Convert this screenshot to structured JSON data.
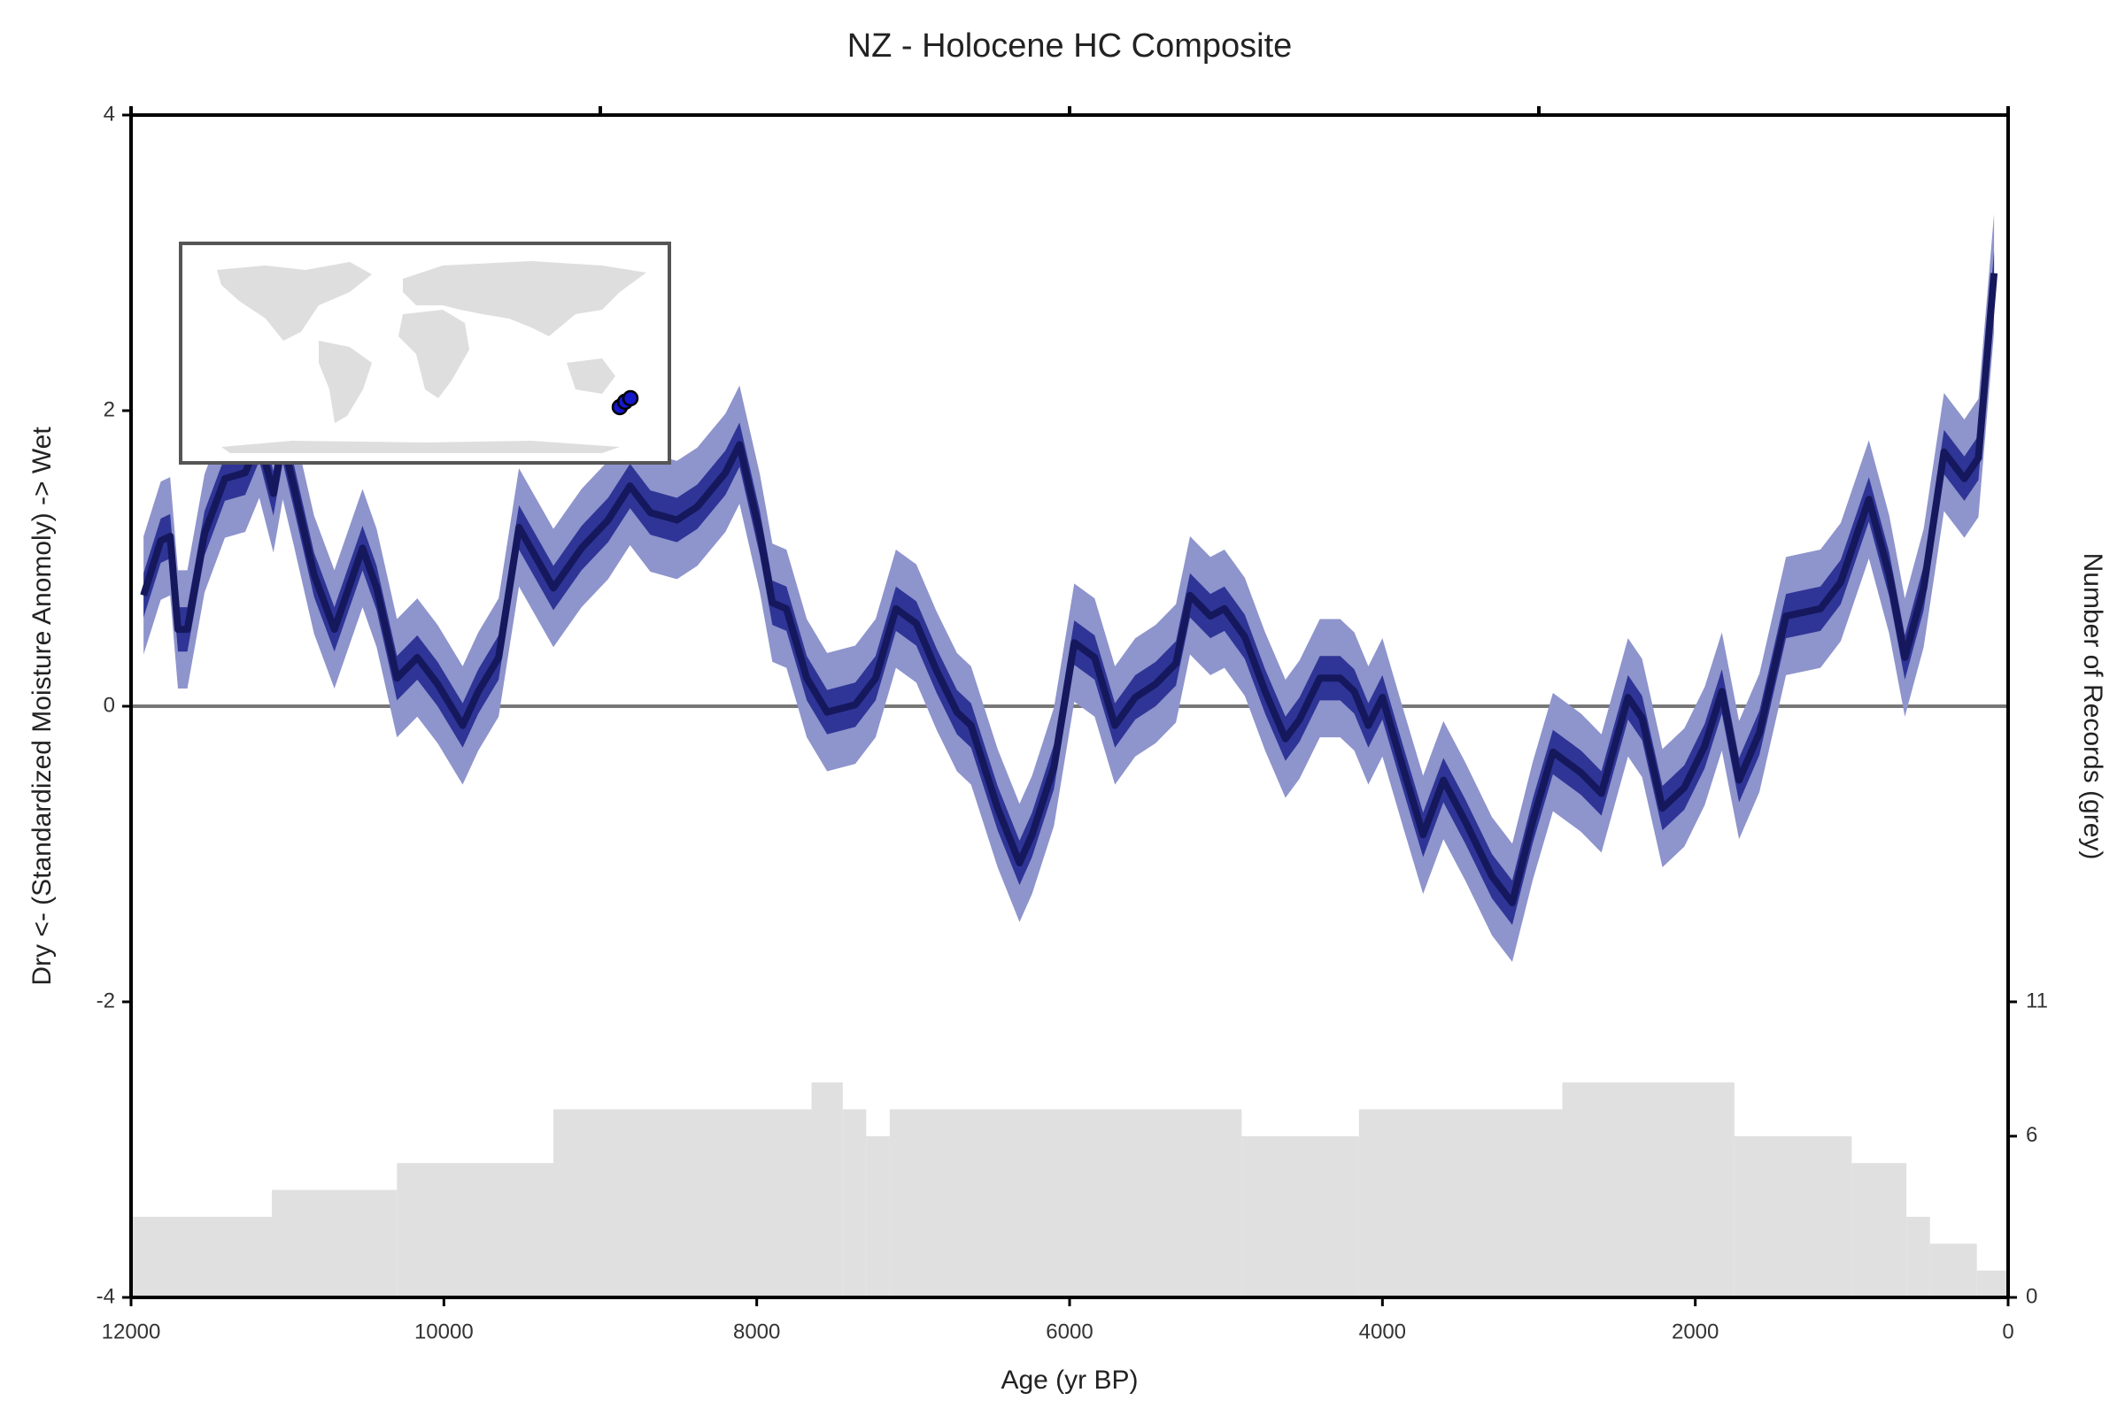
{
  "chart_data": {
    "type": "line",
    "title": "NZ - Holocene HC Composite",
    "xlabel": "Age (yr BP)",
    "ylabel": "Dry <- (Standardized Moisture Anomoly) -> Wet",
    "y2label": "Number of Records (grey)",
    "xlim": [
      12000,
      0
    ],
    "xticks": [
      12000,
      10000,
      8000,
      6000,
      4000,
      2000,
      0
    ],
    "top_ticks": [
      12000,
      9000,
      6000,
      3000,
      0
    ],
    "ylim": [
      -4,
      4
    ],
    "yticks": [
      -4,
      -2,
      0,
      2,
      4
    ],
    "y2lim": [
      0,
      44
    ],
    "y2ticks": [
      0,
      6,
      11
    ],
    "zero_line": 0,
    "x": [
      11920,
      11810,
      11750,
      11700,
      11640,
      11530,
      11400,
      11270,
      11180,
      11090,
      11030,
      10960,
      10830,
      10700,
      10520,
      10430,
      10300,
      10170,
      10040,
      9880,
      9780,
      9650,
      9520,
      9300,
      9120,
      8950,
      8810,
      8680,
      8510,
      8380,
      8200,
      8110,
      7980,
      7900,
      7810,
      7680,
      7550,
      7370,
      7240,
      7110,
      6980,
      6850,
      6720,
      6630,
      6460,
      6320,
      6240,
      6100,
      5970,
      5840,
      5710,
      5580,
      5450,
      5320,
      5230,
      5100,
      5010,
      4880,
      4750,
      4620,
      4530,
      4400,
      4270,
      4180,
      4090,
      4000,
      3870,
      3740,
      3610,
      3470,
      3300,
      3170,
      3040,
      2910,
      2730,
      2600,
      2430,
      2340,
      2210,
      2070,
      1940,
      1830,
      1720,
      1590,
      1420,
      1200,
      1070,
      890,
      760,
      660,
      540,
      410,
      280,
      190,
      90
    ],
    "series": [
      {
        "color": "#16185e",
        "values": [
          0.75,
          1.12,
          1.15,
          0.52,
          0.52,
          1.17,
          1.54,
          1.58,
          1.81,
          1.44,
          1.8,
          1.49,
          0.89,
          0.52,
          1.07,
          0.8,
          0.19,
          0.33,
          0.15,
          -0.13,
          0.1,
          0.33,
          1.21,
          0.8,
          1.07,
          1.26,
          1.49,
          1.31,
          1.26,
          1.35,
          1.58,
          1.77,
          1.17,
          0.7,
          0.66,
          0.19,
          -0.04,
          0.01,
          0.19,
          0.66,
          0.56,
          0.24,
          -0.04,
          -0.13,
          -0.69,
          -1.06,
          -0.87,
          -0.41,
          0.43,
          0.33,
          -0.13,
          0.06,
          0.15,
          0.29,
          0.75,
          0.61,
          0.66,
          0.47,
          0.1,
          -0.22,
          -0.09,
          0.19,
          0.19,
          0.1,
          -0.13,
          0.06,
          -0.41,
          -0.87,
          -0.5,
          -0.78,
          -1.15,
          -1.33,
          -0.78,
          -0.31,
          -0.45,
          -0.59,
          0.06,
          -0.08,
          -0.69,
          -0.55,
          -0.27,
          0.1,
          -0.5,
          -0.18,
          0.61,
          0.66,
          0.84,
          1.4,
          0.89,
          0.33,
          0.8,
          1.72,
          1.54,
          1.68,
          2.93
        ]
      }
    ],
    "bands": [
      {
        "halfwidth": 0.4,
        "color": "#8e94cc"
      },
      {
        "halfwidth": 0.15,
        "color": "#2f3596"
      }
    ],
    "records": {
      "axis": "y2",
      "color": "#e0e0e0",
      "bins": [
        12000,
        11100,
        10300,
        9300,
        7650,
        7450,
        7300,
        7150,
        4900,
        4150,
        2850,
        1750,
        1000,
        650,
        500,
        200,
        0
      ],
      "counts": [
        3,
        4,
        5,
        7,
        8,
        7,
        6,
        7,
        6,
        7,
        8,
        6,
        5,
        3,
        2,
        1
      ]
    }
  }
}
